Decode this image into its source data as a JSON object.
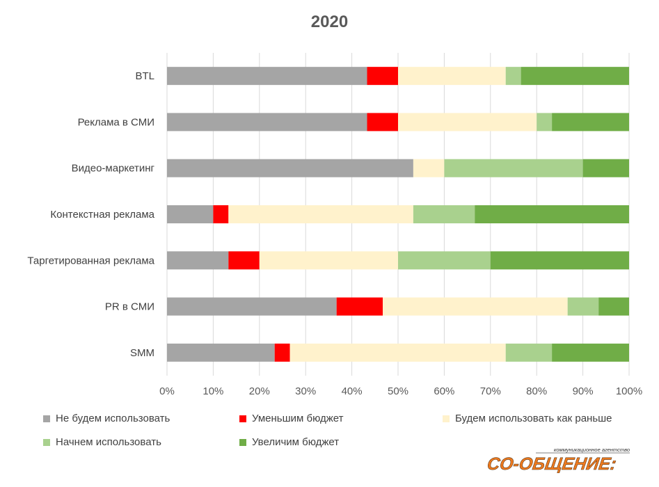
{
  "chart_data": {
    "type": "bar",
    "orientation": "horizontal",
    "stacked": "percent",
    "title": "2020",
    "categories": [
      "BTL",
      "Реклама в СМИ",
      "Видео-маркетинг",
      "Контекстная реклама",
      "Таргетированная реклама",
      "PR в СМИ",
      "SMM"
    ],
    "series": [
      {
        "name": "Не будем использовать",
        "color": "#a5a5a5",
        "values": [
          43.3,
          43.3,
          53.3,
          10.0,
          13.3,
          36.7,
          23.3
        ]
      },
      {
        "name": "Уменьшим бюджет",
        "color": "#ff0000",
        "values": [
          6.7,
          6.7,
          0,
          3.3,
          6.7,
          10.0,
          3.3
        ]
      },
      {
        "name": "Будем использовать как раньше",
        "color": "#fff2cc",
        "values": [
          23.3,
          30.0,
          6.7,
          40.0,
          30.0,
          40.0,
          46.7
        ]
      },
      {
        "name": "Начнем использовать",
        "color": "#a9d18e",
        "values": [
          3.3,
          3.3,
          30.0,
          13.3,
          20.0,
          6.7,
          10.0
        ]
      },
      {
        "name": "Увеличим бюджет",
        "color": "#70ad47",
        "values": [
          23.4,
          16.7,
          10.0,
          33.4,
          30.0,
          6.6,
          16.7
        ]
      }
    ],
    "xlim": [
      0,
      100
    ],
    "x_ticks": [
      "0%",
      "10%",
      "20%",
      "30%",
      "40%",
      "50%",
      "60%",
      "70%",
      "80%",
      "90%",
      "100%"
    ],
    "grid": "vertical",
    "legend_position": "bottom"
  },
  "logo": {
    "tagline": "коммуникационное агентство",
    "name": "СО-ОБЩЕНИЕ:"
  }
}
